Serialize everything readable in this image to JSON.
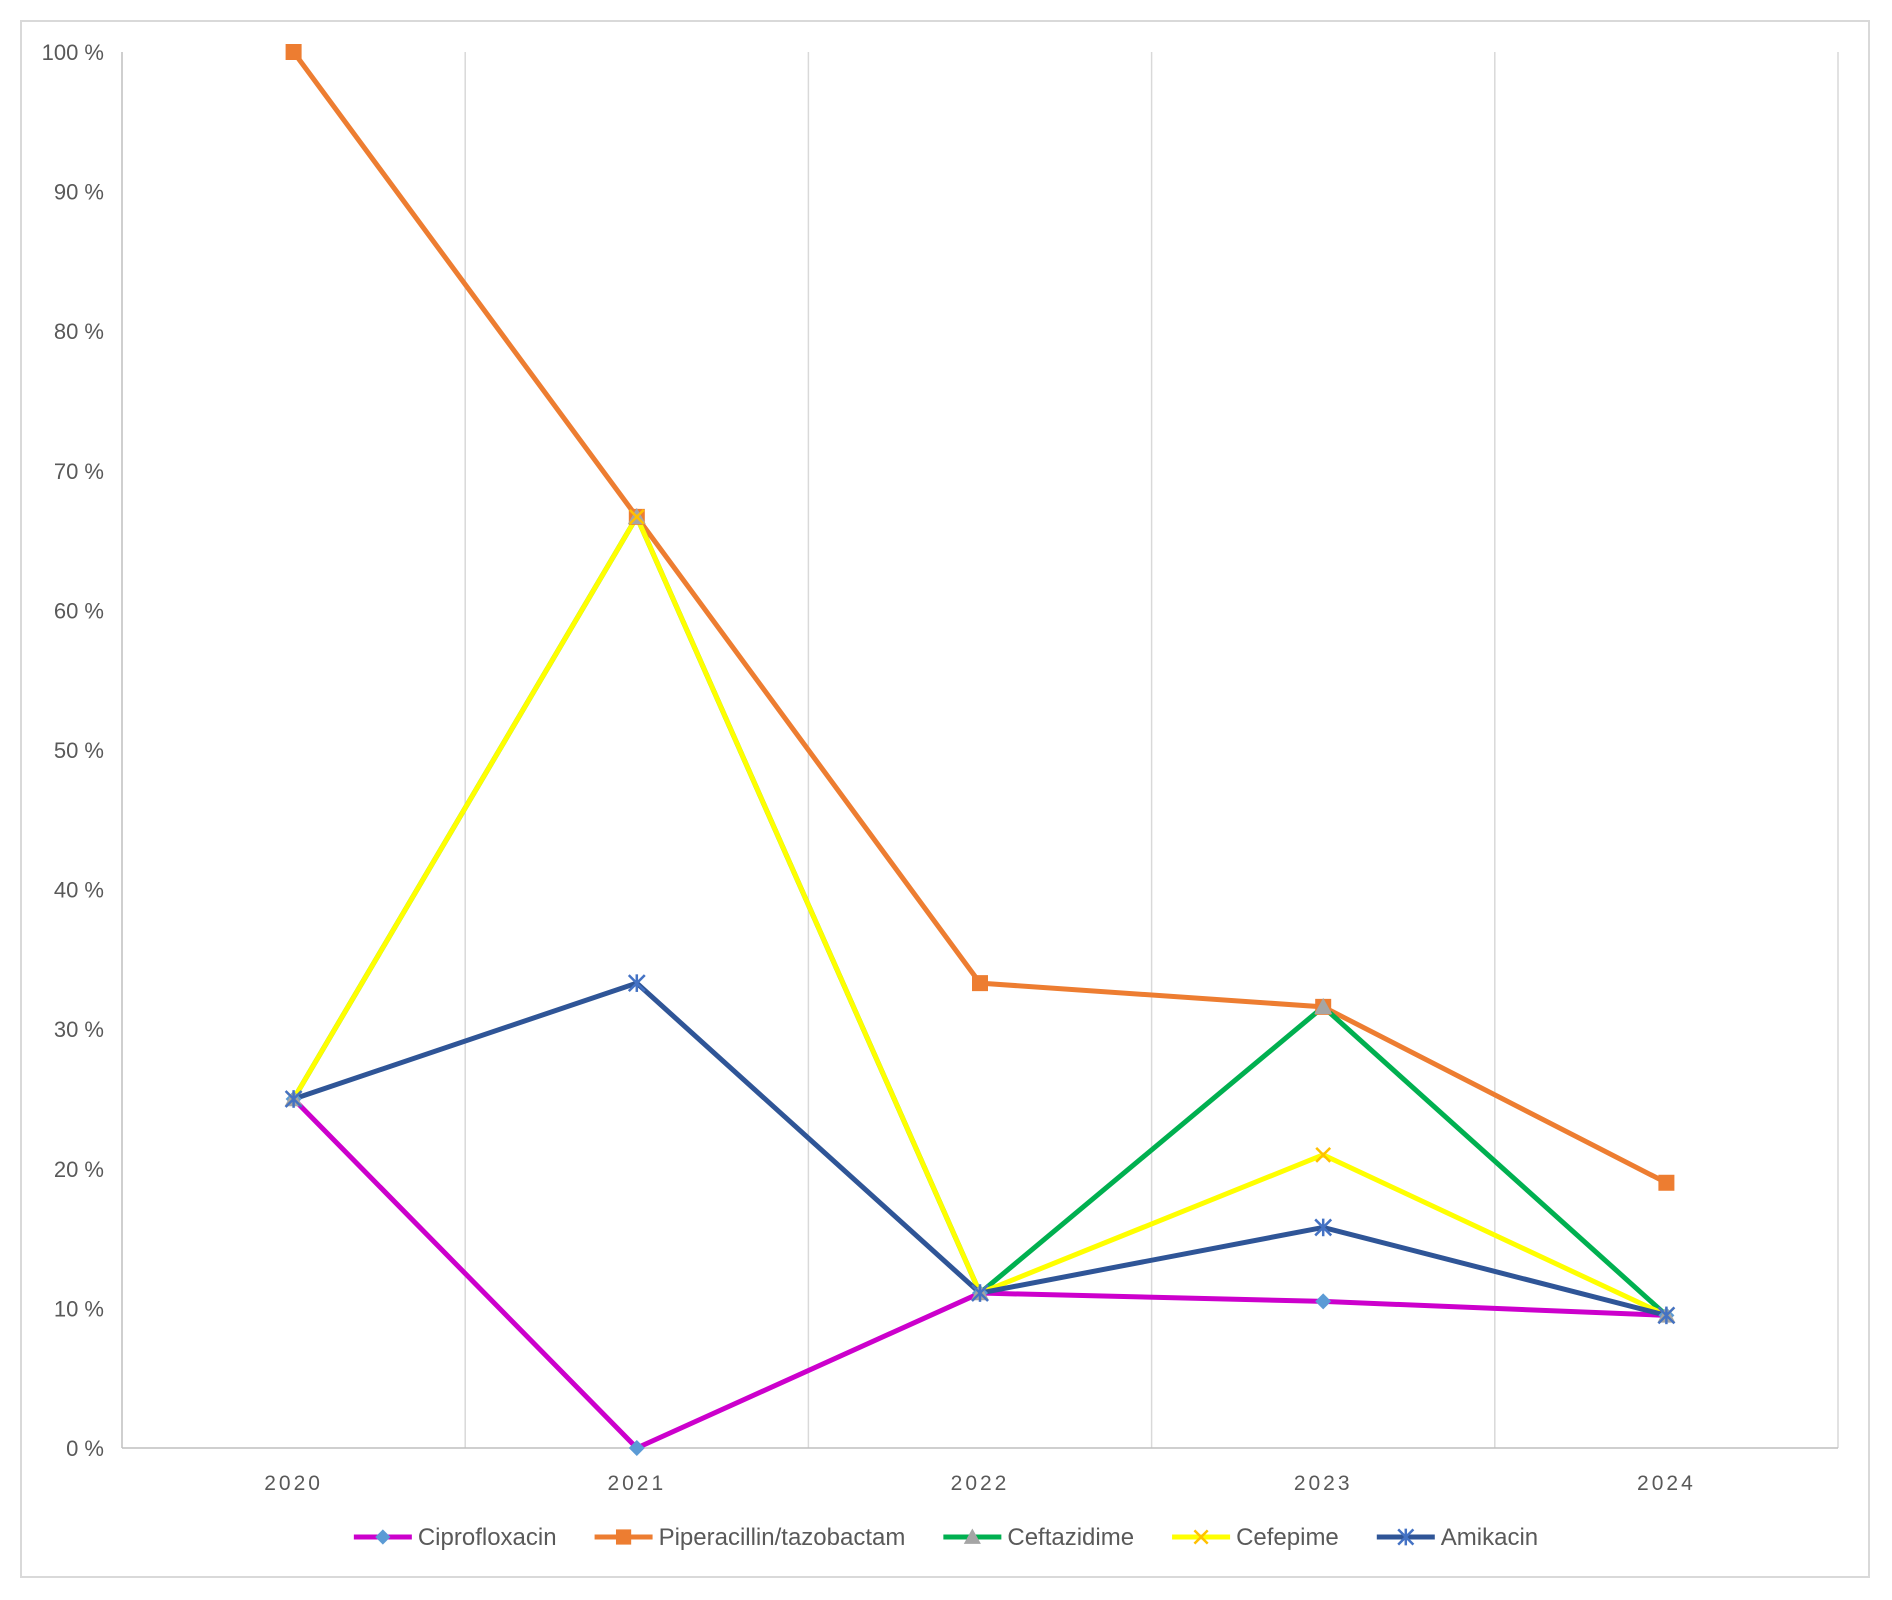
{
  "chart_data": {
    "type": "line",
    "categories": [
      "2020",
      "2021",
      "2022",
      "2023",
      "2024"
    ],
    "y_ticks": [
      "0 %",
      "10 %",
      "20 %",
      "30 %",
      "40 %",
      "50 %",
      "60 %",
      "70 %",
      "80 %",
      "90 %",
      "100 %"
    ],
    "ylim": [
      0,
      100
    ],
    "grid": {
      "vertical": true,
      "horizontal": false
    },
    "legend_position": "bottom",
    "series": [
      {
        "name": "Ciprofloxacin",
        "values": [
          25,
          0,
          11.1,
          10.5,
          9.5
        ],
        "color": "#cc00cc",
        "marker": "diamond",
        "marker_color": "#5b9bd5"
      },
      {
        "name": "Piperacillin/tazobactam",
        "values": [
          100,
          66.7,
          33.3,
          31.6,
          19
        ],
        "color": "#ed7d31",
        "marker": "square",
        "marker_color": "#ed7d31"
      },
      {
        "name": "Ceftazidime",
        "values": [
          25,
          66.7,
          11.1,
          31.6,
          9.5
        ],
        "color": "#00b050",
        "marker": "triangle",
        "marker_color": "#a5a5a5"
      },
      {
        "name": "Cefepime",
        "values": [
          25,
          66.7,
          11.1,
          21,
          9.5
        ],
        "color": "#ffff00",
        "marker": "x",
        "marker_color": "#ffc000"
      },
      {
        "name": "Amikacin",
        "values": [
          25,
          33.3,
          11.1,
          15.8,
          9.5
        ],
        "color": "#2f5597",
        "marker": "star",
        "marker_color": "#4472c4"
      }
    ]
  }
}
